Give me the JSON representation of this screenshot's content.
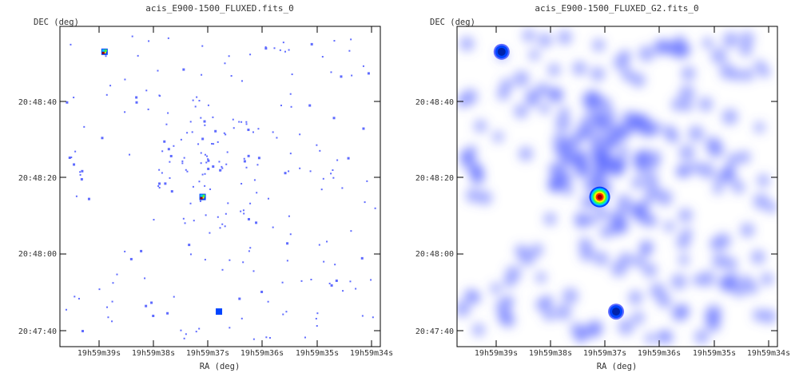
{
  "chart_data": [
    {
      "type": "image",
      "title": "acis_E900-1500_FLUXED.fits_0",
      "xlabel": "RA (deg)",
      "ylabel": "DEC (deg)",
      "x_ticks": [
        "19h59m39s",
        "19h59m38s",
        "19h59m37s",
        "19h59m36s",
        "19h59m35s",
        "19h59m34s"
      ],
      "y_ticks": [
        "20:48:40",
        "20:48:20",
        "20:48:00",
        "20:47:40"
      ],
      "colormap": [
        "#ffffff",
        "#5f6bff",
        "#0044ff",
        "#00c8ff",
        "#40ff40",
        "#ffee00",
        "#ff2a00",
        "#a00000"
      ],
      "smoothing": "none",
      "bright_sources": [
        {
          "ra": "19h59m38.9s",
          "dec": "20:48:53",
          "peak": 0.8
        },
        {
          "ra": "19h59m37.1s",
          "dec": "20:48:15",
          "peak": 1.0
        },
        {
          "ra": "19h59m36.8s",
          "dec": "20:47:45",
          "peak": 0.65
        }
      ]
    },
    {
      "type": "image",
      "title": "acis_E900-1500_FLUXED_G2.fits_0",
      "xlabel": "RA (deg)",
      "ylabel": "DEC (deg)",
      "x_ticks": [
        "19h59m39s",
        "19h59m38s",
        "19h59m37s",
        "19h59m36s",
        "19h59m35s",
        "19h59m34s"
      ],
      "y_ticks": [
        "20:48:40",
        "20:48:20",
        "20:48:00",
        "20:47:40"
      ],
      "colormap": [
        "#ffffff",
        "#5f6bff",
        "#0044ff",
        "#00c8ff",
        "#40ff40",
        "#ffee00",
        "#ff2a00",
        "#a00000"
      ],
      "smoothing": "gaussian",
      "bright_sources": [
        {
          "ra": "19h59m38.9s",
          "dec": "20:48:53",
          "peak": 0.75
        },
        {
          "ra": "19h59m37.1s",
          "dec": "20:48:15",
          "peak": 1.0
        },
        {
          "ra": "19h59m36.8s",
          "dec": "20:47:45",
          "peak": 0.7
        }
      ]
    }
  ]
}
